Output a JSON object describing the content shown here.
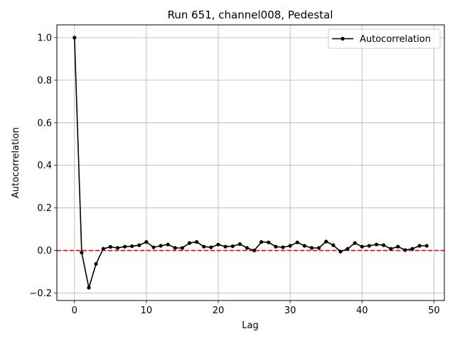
{
  "chart_data": {
    "type": "line",
    "title": "Run 651, channel008, Pedestal",
    "xlabel": "Lag",
    "ylabel": "Autocorrelation",
    "xlim": [
      -2.45,
      51.45
    ],
    "ylim": [
      -0.235,
      1.06
    ],
    "xticks": [
      0,
      10,
      20,
      30,
      40,
      50
    ],
    "xtick_labels": [
      "0",
      "10",
      "20",
      "30",
      "40",
      "50"
    ],
    "yticks": [
      -0.2,
      0.0,
      0.2,
      0.4,
      0.6,
      0.8,
      1.0
    ],
    "ytick_labels": [
      "−0.2",
      "0.0",
      "0.2",
      "0.4",
      "0.6",
      "0.8",
      "1.0"
    ],
    "grid": true,
    "legend": {
      "position": "top-right",
      "entries": [
        "Autocorrelation"
      ]
    },
    "series": [
      {
        "name": "Autocorrelation",
        "color": "#000000",
        "marker": "circle",
        "x": [
          0,
          1,
          2,
          3,
          4,
          5,
          6,
          7,
          8,
          9,
          10,
          11,
          12,
          13,
          14,
          15,
          16,
          17,
          18,
          19,
          20,
          21,
          22,
          23,
          24,
          25,
          26,
          27,
          28,
          29,
          30,
          31,
          32,
          33,
          34,
          35,
          36,
          37,
          38,
          39,
          40,
          41,
          42,
          43,
          44,
          45,
          46,
          47,
          48,
          49
        ],
        "y": [
          1.0,
          -0.01,
          -0.175,
          -0.063,
          0.008,
          0.017,
          0.012,
          0.018,
          0.02,
          0.025,
          0.04,
          0.015,
          0.022,
          0.028,
          0.012,
          0.012,
          0.035,
          0.04,
          0.018,
          0.015,
          0.028,
          0.018,
          0.02,
          0.03,
          0.012,
          0.0,
          0.04,
          0.038,
          0.018,
          0.015,
          0.022,
          0.038,
          0.022,
          0.012,
          0.012,
          0.042,
          0.025,
          -0.005,
          0.008,
          0.035,
          0.018,
          0.022,
          0.028,
          0.025,
          0.008,
          0.018,
          0.002,
          0.008,
          0.022,
          0.022
        ]
      }
    ],
    "reference_line": {
      "y": 0.0,
      "color": "#ff0000",
      "style": "dashed"
    }
  }
}
